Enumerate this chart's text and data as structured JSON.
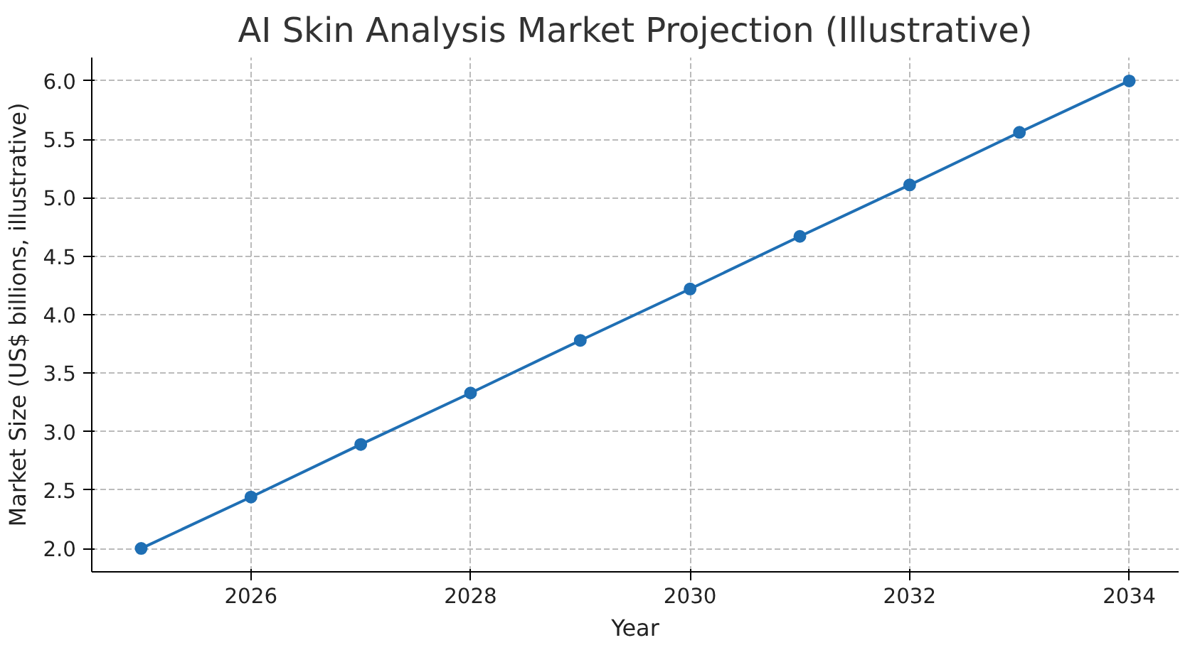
{
  "chart_data": {
    "type": "line",
    "title": "AI Skin Analysis Market Projection (Illustrative)",
    "xlabel": "Year",
    "ylabel": "Market Size (US$ billions, illustrative)",
    "x": [
      2025,
      2026,
      2027,
      2028,
      2029,
      2030,
      2031,
      2032,
      2033,
      2034
    ],
    "series": [
      {
        "color": "#1f6fb4",
        "values": [
          2.0,
          2.44,
          2.89,
          3.33,
          3.78,
          4.22,
          4.67,
          5.11,
          5.56,
          6.0
        ]
      }
    ],
    "xlim": [
      2024.55,
      2034.45
    ],
    "ylim": [
      1.8,
      6.2
    ],
    "xticks": [
      2026,
      2028,
      2030,
      2032,
      2034
    ],
    "yticks": [
      {
        "value": 2.0,
        "label": "2.0"
      },
      {
        "value": 2.5,
        "label": "2.5"
      },
      {
        "value": 3.0,
        "label": "3.0"
      },
      {
        "value": 3.5,
        "label": "3.5"
      },
      {
        "value": 4.0,
        "label": "4.0"
      },
      {
        "value": 4.5,
        "label": "4.5"
      },
      {
        "value": 5.0,
        "label": "5.0"
      },
      {
        "value": 5.5,
        "label": "5.5"
      },
      {
        "value": 6.0,
        "label": "6.0"
      }
    ],
    "grid": true,
    "marker": "circle",
    "line_style": "solid"
  }
}
